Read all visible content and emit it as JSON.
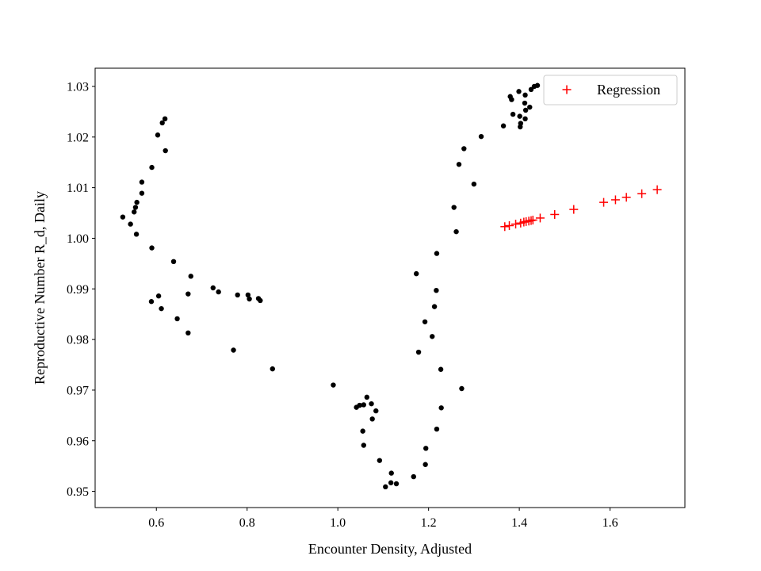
{
  "chart_data": {
    "type": "scatter",
    "title": "",
    "xlabel": "Encounter Density, Adjusted",
    "ylabel": "Reproductive Number R_d, Daily",
    "xlim": [
      0.465,
      1.765
    ],
    "ylim": [
      0.9468,
      1.0336
    ],
    "xticks": [
      {
        "value": 0.6,
        "label": "0.6"
      },
      {
        "value": 0.8,
        "label": "0.8"
      },
      {
        "value": 1.0,
        "label": "1.0"
      },
      {
        "value": 1.2,
        "label": "1.2"
      },
      {
        "value": 1.4,
        "label": "1.4"
      },
      {
        "value": 1.6,
        "label": "1.6"
      }
    ],
    "yticks": [
      {
        "value": 0.95,
        "label": "0.95"
      },
      {
        "value": 0.96,
        "label": "0.96"
      },
      {
        "value": 0.97,
        "label": "0.97"
      },
      {
        "value": 0.98,
        "label": "0.98"
      },
      {
        "value": 0.99,
        "label": "0.99"
      },
      {
        "value": 1.0,
        "label": "1.00"
      },
      {
        "value": 1.01,
        "label": "1.01"
      },
      {
        "value": 1.02,
        "label": "1.02"
      },
      {
        "value": 1.03,
        "label": "1.03"
      }
    ],
    "grid": false,
    "legend_position": "top-right",
    "series": [
      {
        "name": "",
        "marker": "dot",
        "color": "#000000",
        "points": [
          [
            0.619,
            1.0236
          ],
          [
            0.613,
            1.0228
          ],
          [
            0.603,
            1.0204
          ],
          [
            0.62,
            1.0173
          ],
          [
            0.59,
            1.014
          ],
          [
            0.568,
            1.0111
          ],
          [
            0.568,
            1.0089
          ],
          [
            0.557,
            1.0071
          ],
          [
            0.554,
            1.0061
          ],
          [
            0.551,
            1.0052
          ],
          [
            0.526,
            1.0042
          ],
          [
            0.543,
            1.0028
          ],
          [
            0.556,
            1.0008
          ],
          [
            0.59,
            0.9981
          ],
          [
            0.638,
            0.9954
          ],
          [
            0.676,
            0.9925
          ],
          [
            0.725,
            0.9902
          ],
          [
            0.737,
            0.9894
          ],
          [
            0.67,
            0.989
          ],
          [
            0.779,
            0.9888
          ],
          [
            0.802,
            0.9888
          ],
          [
            0.805,
            0.988
          ],
          [
            0.825,
            0.9881
          ],
          [
            0.829,
            0.9877
          ],
          [
            0.605,
            0.9886
          ],
          [
            0.589,
            0.9875
          ],
          [
            0.611,
            0.9861
          ],
          [
            0.646,
            0.9841
          ],
          [
            0.67,
            0.9813
          ],
          [
            0.77,
            0.9779
          ],
          [
            0.856,
            0.9742
          ],
          [
            0.99,
            0.971
          ],
          [
            1.064,
            0.9686
          ],
          [
            1.041,
            0.9666
          ],
          [
            1.048,
            0.967
          ],
          [
            1.057,
            0.9671
          ],
          [
            1.074,
            0.9673
          ],
          [
            1.084,
            0.9659
          ],
          [
            1.076,
            0.9643
          ],
          [
            1.055,
            0.9619
          ],
          [
            1.057,
            0.9591
          ],
          [
            1.092,
            0.9561
          ],
          [
            1.118,
            0.9536
          ],
          [
            1.117,
            0.9517
          ],
          [
            1.129,
            0.9515
          ],
          [
            1.105,
            0.9509
          ],
          [
            1.167,
            0.9529
          ],
          [
            1.193,
            0.9553
          ],
          [
            1.194,
            0.9585
          ],
          [
            1.218,
            0.9623
          ],
          [
            1.228,
            0.9665
          ],
          [
            1.273,
            0.9703
          ],
          [
            1.227,
            0.9741
          ],
          [
            1.178,
            0.9775
          ],
          [
            1.208,
            0.9806
          ],
          [
            1.192,
            0.9835
          ],
          [
            1.213,
            0.9865
          ],
          [
            1.217,
            0.9897
          ],
          [
            1.173,
            0.993
          ],
          [
            1.218,
            0.997
          ],
          [
            1.261,
            1.0013
          ],
          [
            1.256,
            1.0061
          ],
          [
            1.3,
            1.0107
          ],
          [
            1.267,
            1.0146
          ],
          [
            1.278,
            1.0177
          ],
          [
            1.316,
            1.0201
          ],
          [
            1.365,
            1.0222
          ],
          [
            1.386,
            1.0245
          ],
          [
            1.402,
            1.022
          ],
          [
            1.403,
            1.0227
          ],
          [
            1.401,
            1.0241
          ],
          [
            1.413,
            1.0236
          ],
          [
            1.414,
            1.0253
          ],
          [
            1.423,
            1.0259
          ],
          [
            1.412,
            1.0267
          ],
          [
            1.38,
            1.028
          ],
          [
            1.383,
            1.0274
          ],
          [
            1.413,
            1.0283
          ],
          [
            1.399,
            1.029
          ],
          [
            1.426,
            1.0294
          ],
          [
            1.433,
            1.03
          ],
          [
            1.44,
            1.0302
          ]
        ]
      },
      {
        "name": "Regression",
        "marker": "plus",
        "color": "#ff0000",
        "points": [
          [
            1.368,
            1.0023
          ],
          [
            1.378,
            1.0025
          ],
          [
            1.392,
            1.0028
          ],
          [
            1.403,
            1.003
          ],
          [
            1.41,
            1.0032
          ],
          [
            1.415,
            1.0033
          ],
          [
            1.421,
            1.0034
          ],
          [
            1.426,
            1.0035
          ],
          [
            1.43,
            1.0036
          ],
          [
            1.446,
            1.004
          ],
          [
            1.478,
            1.0047
          ],
          [
            1.52,
            1.0057
          ],
          [
            1.586,
            1.0071
          ],
          [
            1.612,
            1.0076
          ],
          [
            1.636,
            1.0081
          ],
          [
            1.67,
            1.0088
          ],
          [
            1.704,
            1.0096
          ]
        ]
      }
    ]
  }
}
